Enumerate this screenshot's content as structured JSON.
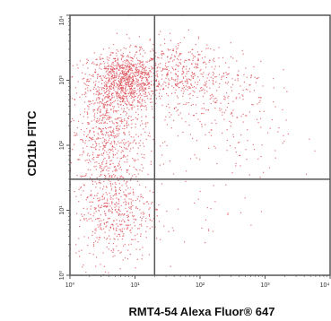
{
  "chart_data": {
    "type": "scatter",
    "title": "",
    "xlabel": "RMT4-54 Alexa Fluor® 647",
    "ylabel": "CD11b FITC",
    "xscale": "log",
    "yscale": "log",
    "xlim": [
      1,
      10000
    ],
    "ylim": [
      1,
      10000
    ],
    "x_ticks": [
      {
        "value": 1,
        "label": "10⁰"
      },
      {
        "value": 10,
        "label": "10¹"
      },
      {
        "value": 100,
        "label": "10²"
      },
      {
        "value": 1000,
        "label": "10³"
      },
      {
        "value": 10000,
        "label": "10⁴"
      }
    ],
    "y_ticks": [
      {
        "value": 1,
        "label": "10⁰"
      },
      {
        "value": 10,
        "label": "10¹"
      },
      {
        "value": 100,
        "label": "10²"
      },
      {
        "value": 1000,
        "label": "10³"
      },
      {
        "value": 10000,
        "label": "10⁴"
      }
    ],
    "quadrant_gates": {
      "x": 20,
      "y": 30
    },
    "grid": false,
    "legend": "none",
    "point_color": "#d9454f",
    "gate_color": "#555555",
    "frame_color": "#555555",
    "populations": [
      {
        "center_x": 7,
        "center_y": 1000,
        "spread_log_x": 0.28,
        "spread_log_y": 0.22,
        "count": 900
      },
      {
        "center_x": 4,
        "center_y": 150,
        "spread_log_x": 0.3,
        "spread_log_y": 0.45,
        "count": 700
      },
      {
        "center_x": 5,
        "center_y": 10,
        "spread_log_x": 0.3,
        "spread_log_y": 0.4,
        "count": 500
      },
      {
        "center_x": 40,
        "center_y": 1500,
        "spread_log_x": 0.35,
        "spread_log_y": 0.25,
        "count": 300
      },
      {
        "center_x": 150,
        "center_y": 800,
        "spread_log_x": 0.45,
        "spread_log_y": 0.3,
        "count": 220
      },
      {
        "center_x": 300,
        "center_y": 150,
        "spread_log_x": 0.5,
        "spread_log_y": 0.45,
        "count": 120
      },
      {
        "center_x": 100,
        "center_y": 8,
        "spread_log_x": 0.4,
        "spread_log_y": 0.35,
        "count": 25
      }
    ]
  }
}
